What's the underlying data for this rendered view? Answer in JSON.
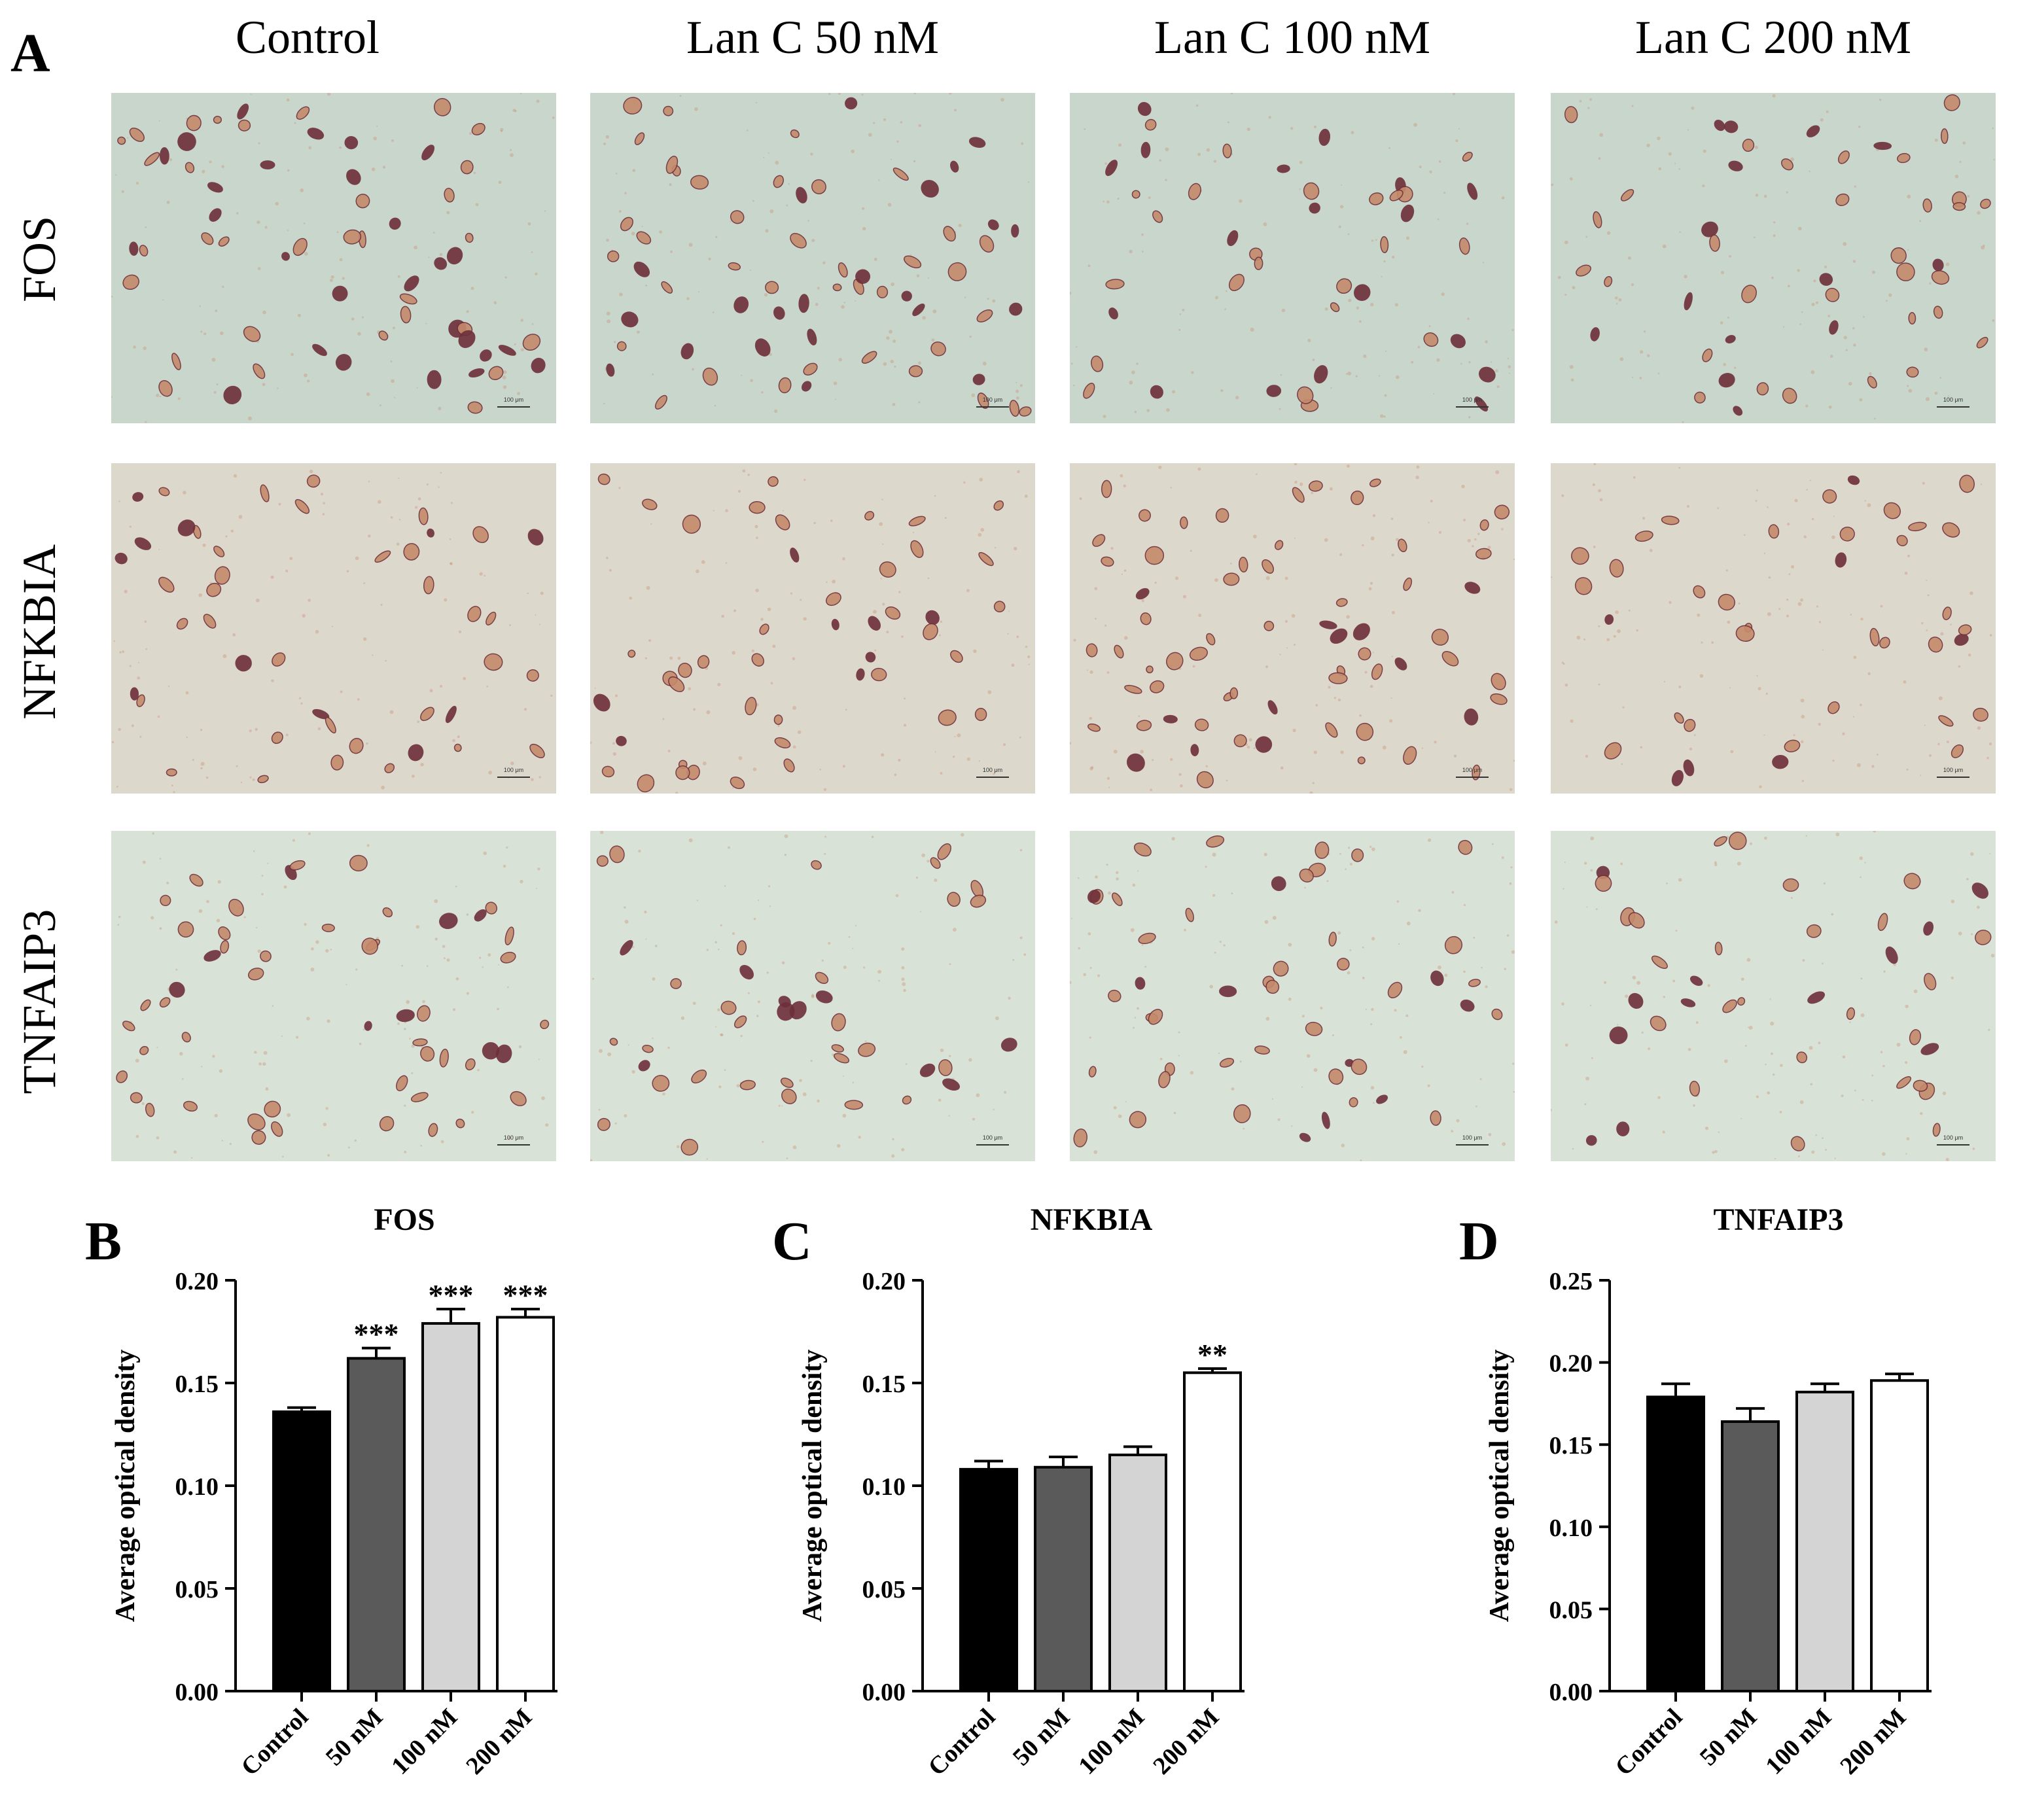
{
  "panel_letters": {
    "a": "A",
    "b": "B",
    "c": "C",
    "d": "D"
  },
  "micrographs": {
    "columns": [
      "Control",
      "Lan C  50 nM",
      "Lan C  100 nM",
      "Lan C  200 nM"
    ],
    "rows": [
      "FOS",
      "NFKBIA",
      "TNFAIP3"
    ],
    "scale_bar_label": "100 μm",
    "background_colors": {
      "FOS": "#c9d6cc",
      "NFKBIA": "#ddd8cc",
      "TNFAIP3": "#d9e2d6"
    },
    "cell_colors": {
      "light": "#c58a6b",
      "dark": "#6e2f3a"
    }
  },
  "chart_data": [
    {
      "type": "bar",
      "title": "FOS",
      "ylabel": "Average optical density",
      "categories": [
        "Control",
        "50 nM",
        "100 nM",
        "200 nM"
      ],
      "values": [
        0.136,
        0.162,
        0.179,
        0.182
      ],
      "errors": [
        0.002,
        0.005,
        0.007,
        0.004
      ],
      "annotations": [
        "",
        "***",
        "***",
        "***"
      ],
      "bar_colors": [
        "#000000",
        "#5a5a5a",
        "#d4d4d4",
        "#ffffff"
      ],
      "ylim": [
        0,
        0.2
      ],
      "yticks": [
        "0.00",
        "0.05",
        "0.10",
        "0.15",
        "0.20"
      ]
    },
    {
      "type": "bar",
      "title": "NFKBIA",
      "ylabel": "Average optical density",
      "categories": [
        "Control",
        "50 nM",
        "100 nM",
        "200 nM"
      ],
      "values": [
        0.108,
        0.109,
        0.115,
        0.155
      ],
      "errors": [
        0.004,
        0.005,
        0.004,
        0.002
      ],
      "annotations": [
        "",
        "",
        "",
        "**"
      ],
      "bar_colors": [
        "#000000",
        "#5a5a5a",
        "#d4d4d4",
        "#ffffff"
      ],
      "ylim": [
        0,
        0.2
      ],
      "yticks": [
        "0.00",
        "0.05",
        "0.10",
        "0.15",
        "0.20"
      ]
    },
    {
      "type": "bar",
      "title": "TNFAIP3",
      "ylabel": "Average optical density",
      "categories": [
        "Control",
        "50 nM",
        "100 nM",
        "200 nM"
      ],
      "values": [
        0.179,
        0.164,
        0.182,
        0.189
      ],
      "errors": [
        0.008,
        0.008,
        0.005,
        0.004
      ],
      "annotations": [
        "",
        "",
        "",
        ""
      ],
      "bar_colors": [
        "#000000",
        "#5a5a5a",
        "#d4d4d4",
        "#ffffff"
      ],
      "ylim": [
        0,
        0.25
      ],
      "yticks": [
        "0.00",
        "0.05",
        "0.10",
        "0.15",
        "0.20",
        "0.25"
      ]
    }
  ]
}
